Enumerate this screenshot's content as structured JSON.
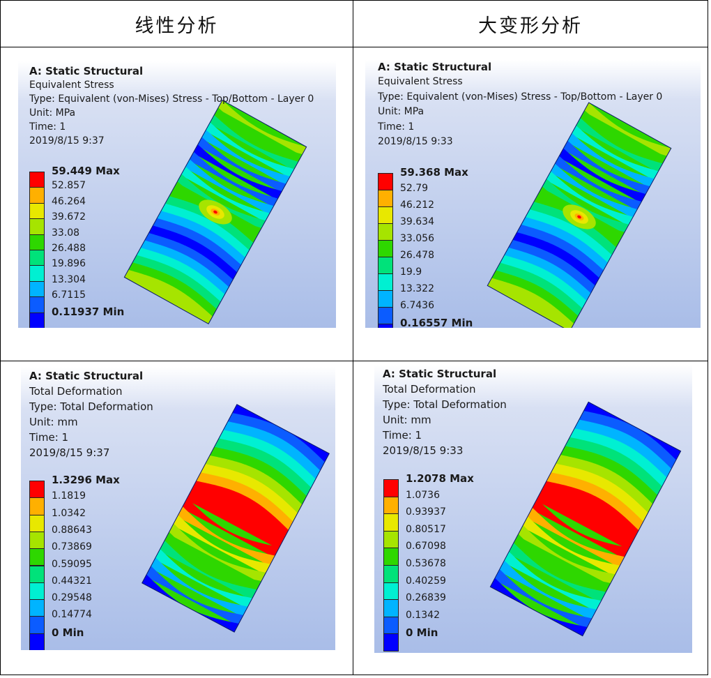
{
  "headers": {
    "left": "线性分析",
    "right": "大变形分析"
  },
  "palette": [
    "#0000ff",
    "#0b5cff",
    "#00b4ff",
    "#00f0d2",
    "#00e27a",
    "#2ed700",
    "#a6e400",
    "#e8e800",
    "#ffb000",
    "#ff0000"
  ],
  "panels": [
    {
      "id": "lin-stress",
      "lines": [
        "A: Static Structural",
        "Equivalent Stress",
        "Type: Equivalent (von-Mises) Stress - Top/Bottom - Layer 0",
        "Unit: MPa",
        "Time: 1",
        "2019/8/15 9:37"
      ],
      "legend": [
        "59.449 Max",
        "52.857",
        "46.264",
        "39.672",
        "33.08",
        "26.488",
        "19.896",
        "13.304",
        "6.7115",
        "0.11937 Min"
      ]
    },
    {
      "id": "ld-stress",
      "lines": [
        "A: Static Structural",
        "Equivalent Stress",
        "Type: Equivalent (von-Mises) Stress - Top/Bottom - Layer 0",
        "Unit: MPa",
        "Time: 1",
        "2019/8/15 9:33"
      ],
      "legend": [
        "59.368 Max",
        "52.79",
        "46.212",
        "39.634",
        "33.056",
        "26.478",
        "19.9",
        "13.322",
        "6.7436",
        "0.16557 Min"
      ]
    },
    {
      "id": "lin-def",
      "lines": [
        "A: Static Structural",
        "Total Deformation",
        "Type: Total Deformation",
        "Unit: mm",
        "Time: 1",
        "2019/8/15 9:37"
      ],
      "legend": [
        "1.3296 Max",
        "1.1819",
        "1.0342",
        "0.88643",
        "0.73869",
        "0.59095",
        "0.44321",
        "0.29548",
        "0.14774",
        "0 Min"
      ]
    },
    {
      "id": "ld-def",
      "lines": [
        "A: Static Structural",
        "Total Deformation",
        "Type: Total Deformation",
        "Unit: mm",
        "Time: 1",
        "2019/8/15 9:33"
      ],
      "legend": [
        "1.2078 Max",
        "1.0736",
        "0.93937",
        "0.80517",
        "0.67098",
        "0.53678",
        "0.40259",
        "0.26839",
        "0.1342",
        "0 Min"
      ]
    }
  ]
}
